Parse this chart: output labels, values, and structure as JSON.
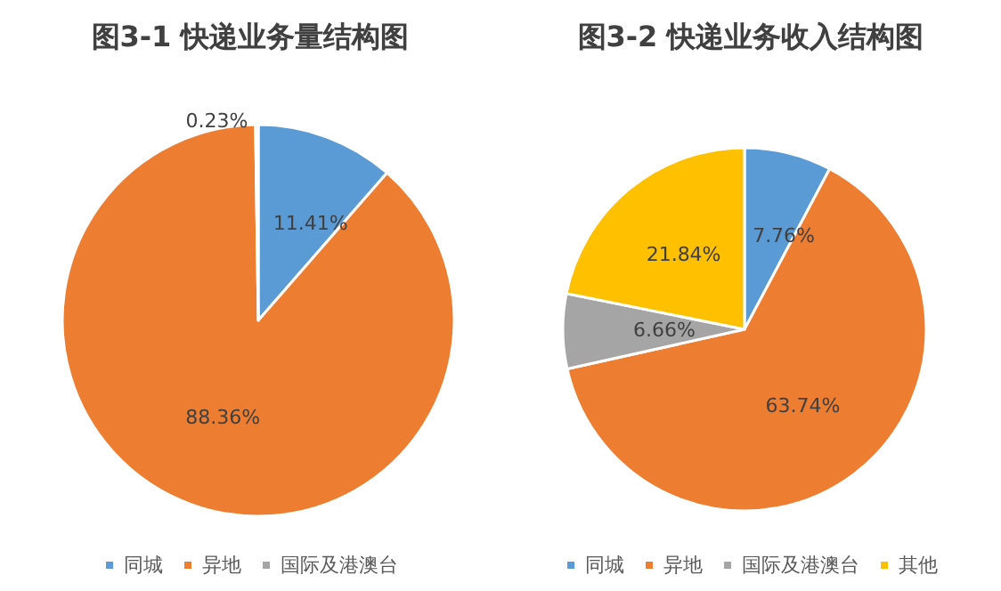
{
  "chart_data": [
    {
      "type": "pie",
      "title": "图3-1 快递业务量结构图",
      "categories": [
        "同城",
        "异地",
        "国际及港澳台"
      ],
      "values": [
        11.41,
        88.36,
        0.23
      ],
      "colors": [
        "#5b9bd5",
        "#ed7d31",
        "#a5a5a5"
      ],
      "value_labels": [
        "11.41%",
        "88.36%",
        "0.23%"
      ],
      "legend": "bottom"
    },
    {
      "type": "pie",
      "title": "图3-2 快递业务收入结构图",
      "categories": [
        "同城",
        "异地",
        "国际及港澳台",
        "其他"
      ],
      "values": [
        7.76,
        63.74,
        6.66,
        21.84
      ],
      "colors": [
        "#5b9bd5",
        "#ed7d31",
        "#a5a5a5",
        "#ffc000"
      ],
      "value_labels": [
        "7.76%",
        "63.74%",
        "6.66%",
        "21.84%"
      ],
      "legend": "bottom"
    }
  ]
}
